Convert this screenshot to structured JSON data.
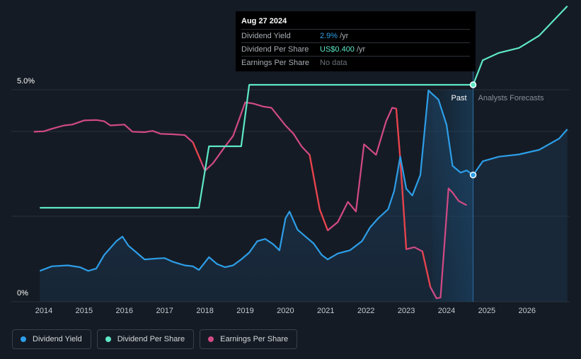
{
  "tooltip": {
    "date": "Aug 27 2024",
    "rows": [
      {
        "label": "Dividend Yield",
        "value": "2.9%",
        "suffix": "/yr"
      },
      {
        "label": "Dividend Per Share",
        "value": "US$0.400",
        "suffix": "/yr"
      },
      {
        "label": "Earnings Per Share",
        "value": "No data",
        "suffix": ""
      }
    ]
  },
  "regions": {
    "past_label": "Past",
    "forecast_label": "Analysts Forecasts"
  },
  "colors": {
    "background": "#151b24",
    "dividend_yield": "#2d9ee8",
    "dividend_per_share": "#5ee8c6",
    "earnings_per_share": "#d24a85",
    "eps_negative_change": "#e8434a"
  },
  "legend": [
    {
      "label": "Dividend Yield",
      "color": "#2d9ee8"
    },
    {
      "label": "Dividend Per Share",
      "color": "#5ee8c6"
    },
    {
      "label": "Earnings Per Share",
      "color": "#d24a85"
    }
  ],
  "chart_data": {
    "type": "line",
    "x_ticks": [
      "2014",
      "2015",
      "2016",
      "2017",
      "2018",
      "2019",
      "2020",
      "2021",
      "2022",
      "2023",
      "2024",
      "2025",
      "2026"
    ],
    "y_ticks": [
      "0%",
      "5.0%"
    ],
    "xlim": [
      2013.6,
      2027.0
    ],
    "ylim": [
      0,
      5.2
    ],
    "grid": true,
    "legend_position": "bottom-left",
    "past_end": 2024.66,
    "forecast_start": 2024.66,
    "past_shade_start": 2023.65,
    "series": [
      {
        "name": "Dividend Yield",
        "unit": "%",
        "points": [
          [
            2013.9,
            0.8
          ],
          [
            2014.2,
            0.9
          ],
          [
            2014.6,
            0.92
          ],
          [
            2014.9,
            0.88
          ],
          [
            2015.1,
            0.8
          ],
          [
            2015.3,
            0.85
          ],
          [
            2015.5,
            1.15
          ],
          [
            2015.8,
            1.45
          ],
          [
            2015.95,
            1.55
          ],
          [
            2016.1,
            1.35
          ],
          [
            2016.3,
            1.2
          ],
          [
            2016.5,
            1.05
          ],
          [
            2016.8,
            1.07
          ],
          [
            2017.0,
            1.08
          ],
          [
            2017.2,
            1.0
          ],
          [
            2017.5,
            0.92
          ],
          [
            2017.7,
            0.9
          ],
          [
            2017.85,
            0.82
          ],
          [
            2018.1,
            1.1
          ],
          [
            2018.3,
            0.95
          ],
          [
            2018.5,
            0.88
          ],
          [
            2018.7,
            0.92
          ],
          [
            2018.9,
            1.05
          ],
          [
            2019.1,
            1.2
          ],
          [
            2019.3,
            1.45
          ],
          [
            2019.5,
            1.5
          ],
          [
            2019.7,
            1.38
          ],
          [
            2019.85,
            1.25
          ],
          [
            2020.0,
            1.95
          ],
          [
            2020.1,
            2.1
          ],
          [
            2020.3,
            1.7
          ],
          [
            2020.5,
            1.55
          ],
          [
            2020.7,
            1.4
          ],
          [
            2020.9,
            1.15
          ],
          [
            2021.05,
            1.05
          ],
          [
            2021.3,
            1.18
          ],
          [
            2021.6,
            1.25
          ],
          [
            2021.9,
            1.45
          ],
          [
            2022.1,
            1.75
          ],
          [
            2022.3,
            1.95
          ],
          [
            2022.55,
            2.15
          ],
          [
            2022.7,
            2.55
          ],
          [
            2022.85,
            3.3
          ],
          [
            2023.0,
            2.6
          ],
          [
            2023.15,
            2.45
          ],
          [
            2023.35,
            2.9
          ],
          [
            2023.55,
            4.75
          ],
          [
            2023.8,
            4.55
          ],
          [
            2024.0,
            4.0
          ],
          [
            2024.15,
            3.1
          ],
          [
            2024.35,
            2.95
          ],
          [
            2024.5,
            3.0
          ],
          [
            2024.66,
            2.9
          ]
        ]
      },
      {
        "name": "Dividend Yield Forecast",
        "unit": "%",
        "points": [
          [
            2024.66,
            2.9
          ],
          [
            2024.9,
            3.2
          ],
          [
            2025.3,
            3.3
          ],
          [
            2025.8,
            3.35
          ],
          [
            2026.3,
            3.45
          ],
          [
            2026.8,
            3.7
          ],
          [
            2027.0,
            3.9
          ]
        ]
      },
      {
        "name": "Dividend Per Share",
        "unit": "US$",
        "points": [
          [
            2013.9,
            0.2
          ],
          [
            2017.85,
            0.2
          ],
          [
            2018.1,
            0.3
          ],
          [
            2018.9,
            0.3
          ],
          [
            2019.1,
            0.4
          ],
          [
            2024.66,
            0.4
          ]
        ]
      },
      {
        "name": "Dividend Per Share Forecast",
        "unit": "US$",
        "points": [
          [
            2024.66,
            0.4
          ],
          [
            2024.9,
            0.44
          ],
          [
            2025.3,
            0.452
          ],
          [
            2025.8,
            0.46
          ],
          [
            2026.3,
            0.48
          ],
          [
            2027.0,
            0.528
          ]
        ]
      },
      {
        "name": "Earnings Per Share",
        "unit": "US$",
        "points": [
          [
            2013.75,
            4.05
          ],
          [
            2014.0,
            4.06
          ],
          [
            2014.2,
            4.12
          ],
          [
            2014.5,
            4.2
          ],
          [
            2014.7,
            4.22
          ],
          [
            2015.0,
            4.32
          ],
          [
            2015.3,
            4.33
          ],
          [
            2015.5,
            4.3
          ],
          [
            2015.65,
            4.2
          ],
          [
            2016.0,
            4.22
          ],
          [
            2016.2,
            4.05
          ],
          [
            2016.5,
            4.04
          ],
          [
            2016.7,
            4.07
          ],
          [
            2016.9,
            4.0
          ],
          [
            2017.2,
            3.99
          ],
          [
            2017.5,
            3.97
          ],
          [
            2017.7,
            3.8
          ],
          [
            2017.9,
            3.35
          ],
          [
            2018.0,
            3.12
          ],
          [
            2018.2,
            3.3
          ],
          [
            2018.5,
            3.7
          ],
          [
            2018.7,
            3.95
          ],
          [
            2018.85,
            4.35
          ],
          [
            2019.0,
            4.75
          ],
          [
            2019.2,
            4.72
          ],
          [
            2019.45,
            4.65
          ],
          [
            2019.65,
            4.62
          ],
          [
            2019.85,
            4.38
          ],
          [
            2020.0,
            4.2
          ],
          [
            2020.2,
            4.0
          ],
          [
            2020.4,
            3.7
          ],
          [
            2020.6,
            3.5
          ],
          [
            2020.85,
            2.2
          ],
          [
            2021.05,
            1.7
          ],
          [
            2021.3,
            1.9
          ],
          [
            2021.55,
            2.38
          ],
          [
            2021.75,
            2.15
          ],
          [
            2021.95,
            3.75
          ],
          [
            2022.25,
            3.5
          ],
          [
            2022.5,
            4.3
          ],
          [
            2022.65,
            4.62
          ],
          [
            2022.75,
            4.6
          ],
          [
            2022.85,
            3.4
          ],
          [
            2023.0,
            1.25
          ],
          [
            2023.2,
            1.3
          ],
          [
            2023.4,
            1.2
          ],
          [
            2023.6,
            0.35
          ],
          [
            2023.75,
            0.08
          ],
          [
            2023.85,
            0.1
          ],
          [
            2024.05,
            2.7
          ],
          [
            2024.15,
            2.6
          ],
          [
            2024.3,
            2.4
          ],
          [
            2024.5,
            2.3
          ]
        ]
      }
    ]
  }
}
